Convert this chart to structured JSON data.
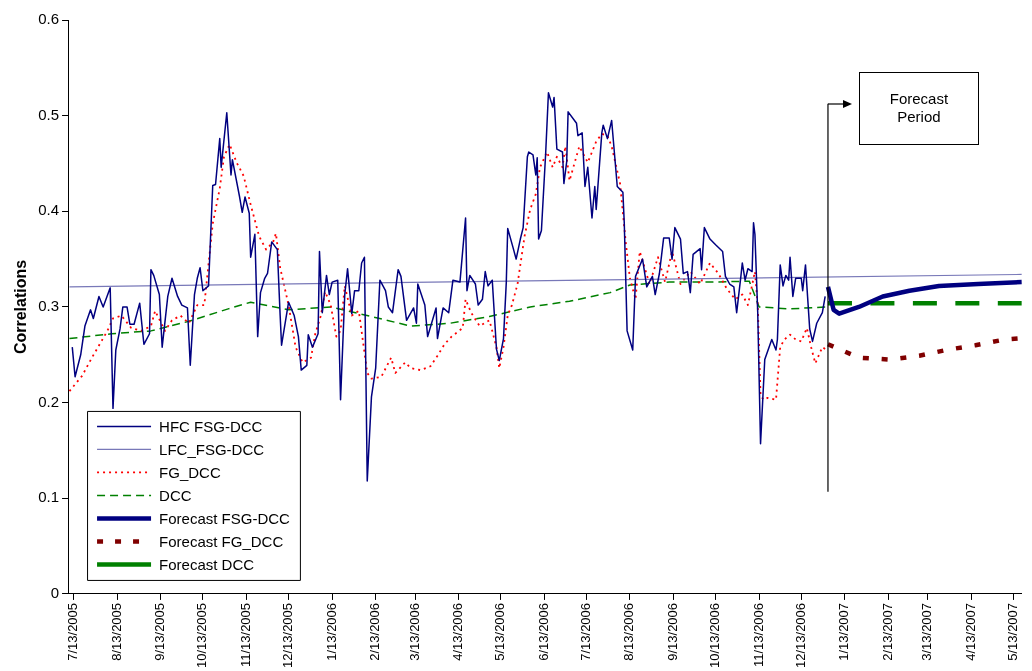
{
  "chart_data": {
    "type": "line",
    "ylabel": "Correlations",
    "xlim": [
      "2005-07-09",
      "2007-05-19"
    ],
    "ylim": [
      0,
      0.6
    ],
    "yticks": [
      0,
      0.1,
      0.2,
      0.3,
      0.4,
      0.5,
      0.6
    ],
    "xticks": [
      {
        "value": "2005-07-13",
        "label": "7/13/2005"
      },
      {
        "value": "2005-08-13",
        "label": "8/13/2005"
      },
      {
        "value": "2005-09-13",
        "label": "9/13/2005"
      },
      {
        "value": "2005-10-13",
        "label": "10/13/2005"
      },
      {
        "value": "2005-11-13",
        "label": "11/13/2005"
      },
      {
        "value": "2005-12-13",
        "label": "12/13/2005"
      },
      {
        "value": "2006-01-13",
        "label": "1/13/2006"
      },
      {
        "value": "2006-02-13",
        "label": "2/13/2006"
      },
      {
        "value": "2006-03-13",
        "label": "3/13/2006"
      },
      {
        "value": "2006-04-13",
        "label": "4/13/2006"
      },
      {
        "value": "2006-05-13",
        "label": "5/13/2006"
      },
      {
        "value": "2006-06-13",
        "label": "6/13/2006"
      },
      {
        "value": "2006-07-13",
        "label": "7/13/2006"
      },
      {
        "value": "2006-08-13",
        "label": "8/13/2006"
      },
      {
        "value": "2006-09-13",
        "label": "9/13/2006"
      },
      {
        "value": "2006-10-13",
        "label": "10/13/2006"
      },
      {
        "value": "2006-11-13",
        "label": "11/13/2006"
      },
      {
        "value": "2006-12-13",
        "label": "12/13/2006"
      },
      {
        "value": "2007-01-13",
        "label": "1/13/2007"
      },
      {
        "value": "2007-02-13",
        "label": "2/13/2007"
      },
      {
        "value": "2007-03-13",
        "label": "3/13/2007"
      },
      {
        "value": "2007-04-13",
        "label": "4/13/2007"
      },
      {
        "value": "2007-05-13",
        "label": "5/13/2007"
      }
    ],
    "legend": "bottom left",
    "marker": "none",
    "ref_lines": [
      {
        "axis": "x",
        "value": "2007-01-01",
        "color": "#000000"
      }
    ],
    "annotations": [
      "Forecast Period"
    ],
    "series": [
      {
        "name": "HFC FSG-DCC",
        "color": "#000080",
        "line_style": "solid",
        "x": [
          "2005-07-12",
          "2005-07-14",
          "2005-07-18",
          "2005-07-21",
          "2005-07-25",
          "2005-07-27",
          "2005-07-31",
          "2005-08-03",
          "2005-08-08",
          "2005-08-10",
          "2005-08-12",
          "2005-08-15",
          "2005-08-17",
          "2005-08-20",
          "2005-08-22",
          "2005-08-25",
          "2005-08-29",
          "2005-09-01",
          "2005-09-05",
          "2005-09-06",
          "2005-09-08",
          "2005-09-12",
          "2005-09-14",
          "2005-09-18",
          "2005-09-21",
          "2005-09-25",
          "2005-09-28",
          "2005-10-02",
          "2005-10-04",
          "2005-10-07",
          "2005-10-09",
          "2005-10-11",
          "2005-10-13",
          "2005-10-17",
          "2005-10-20",
          "2005-10-22",
          "2005-10-25",
          "2005-10-26",
          "2005-10-30",
          "2005-11-02",
          "2005-11-03",
          "2005-11-08",
          "2005-11-10",
          "2005-11-12",
          "2005-11-15",
          "2005-11-16",
          "2005-11-19",
          "2005-11-21",
          "2005-11-23",
          "2005-11-26",
          "2005-11-28",
          "2005-12-01",
          "2005-12-05",
          "2005-12-07",
          "2005-12-08",
          "2005-12-13",
          "2005-12-17",
          "2005-12-20",
          "2005-12-22",
          "2005-12-26",
          "2005-12-27",
          "2005-12-30",
          "2006-01-03",
          "2006-01-04",
          "2006-01-06",
          "2006-01-09",
          "2006-01-11",
          "2006-01-13",
          "2006-01-17",
          "2006-01-19",
          "2006-01-22",
          "2006-01-24",
          "2006-01-27",
          "2006-01-29",
          "2006-02-01",
          "2006-02-03",
          "2006-02-05",
          "2006-02-07",
          "2006-02-10",
          "2006-02-13",
          "2006-02-16",
          "2006-02-20",
          "2006-02-22",
          "2006-02-25",
          "2006-03-01",
          "2006-03-03",
          "2006-03-07",
          "2006-03-12",
          "2006-03-14",
          "2006-03-15",
          "2006-03-20",
          "2006-03-22",
          "2006-03-28",
          "2006-03-29",
          "2006-04-02",
          "2006-04-06",
          "2006-04-09",
          "2006-04-14",
          "2006-04-18",
          "2006-04-19",
          "2006-04-21",
          "2006-04-25",
          "2006-04-27",
          "2006-04-30",
          "2006-05-02",
          "2006-05-04",
          "2006-05-07",
          "2006-05-10",
          "2006-05-12",
          "2006-05-15",
          "2006-05-17",
          "2006-05-18",
          "2006-05-22",
          "2006-05-24",
          "2006-05-27",
          "2006-05-29",
          "2006-06-01",
          "2006-06-02",
          "2006-06-05",
          "2006-06-07",
          "2006-06-08",
          "2006-06-09",
          "2006-06-11",
          "2006-06-14",
          "2006-06-16",
          "2006-06-19",
          "2006-06-20",
          "2006-06-22",
          "2006-06-26",
          "2006-06-27",
          "2006-06-29",
          "2006-06-30",
          "2006-07-06",
          "2006-07-07",
          "2006-07-10",
          "2006-07-12",
          "2006-07-14",
          "2006-07-17",
          "2006-07-19",
          "2006-07-20",
          "2006-07-24",
          "2006-07-25",
          "2006-07-28",
          "2006-07-31",
          "2006-08-04",
          "2006-08-08",
          "2006-08-09",
          "2006-08-11",
          "2006-08-15",
          "2006-08-17",
          "2006-08-20",
          "2006-08-22",
          "2006-08-25",
          "2006-08-29",
          "2006-08-31",
          "2006-09-03",
          "2006-09-06",
          "2006-09-10",
          "2006-09-12",
          "2006-09-14",
          "2006-09-18",
          "2006-09-20",
          "2006-09-23",
          "2006-09-25",
          "2006-09-27",
          "2006-10-02",
          "2006-10-03",
          "2006-10-05",
          "2006-10-09",
          "2006-10-13",
          "2006-10-18",
          "2006-10-20",
          "2006-10-23",
          "2006-10-26",
          "2006-10-28",
          "2006-10-31",
          "2006-11-01",
          "2006-11-03",
          "2006-11-05",
          "2006-11-08",
          "2006-11-09",
          "2006-11-10",
          "2006-11-12",
          "2006-11-14",
          "2006-11-17",
          "2006-11-22",
          "2006-11-25",
          "2006-11-26",
          "2006-11-28",
          "2006-11-30",
          "2006-12-02",
          "2006-12-04",
          "2006-12-05",
          "2006-12-07",
          "2006-12-09",
          "2006-12-13",
          "2006-12-14",
          "2006-12-16",
          "2006-12-19",
          "2006-12-21",
          "2006-12-24",
          "2006-12-28",
          "2006-12-30"
        ],
        "values": [
          0.258,
          0.227,
          0.25,
          0.28,
          0.297,
          0.288,
          0.311,
          0.3,
          0.32,
          0.194,
          0.255,
          0.277,
          0.3,
          0.3,
          0.282,
          0.282,
          0.304,
          0.261,
          0.272,
          0.339,
          0.333,
          0.313,
          0.258,
          0.311,
          0.33,
          0.311,
          0.302,
          0.299,
          0.239,
          0.313,
          0.33,
          0.341,
          0.317,
          0.322,
          0.427,
          0.428,
          0.476,
          0.446,
          0.503,
          0.438,
          0.454,
          0.416,
          0.399,
          0.415,
          0.398,
          0.352,
          0.376,
          0.269,
          0.315,
          0.33,
          0.335,
          0.368,
          0.36,
          0.291,
          0.26,
          0.305,
          0.291,
          0.269,
          0.234,
          0.239,
          0.271,
          0.258,
          0.272,
          0.358,
          0.294,
          0.333,
          0.313,
          0.326,
          0.328,
          0.203,
          0.313,
          0.34,
          0.293,
          0.317,
          0.317,
          0.346,
          0.352,
          0.118,
          0.206,
          0.236,
          0.328,
          0.317,
          0.3,
          0.294,
          0.339,
          0.332,
          0.286,
          0.299,
          0.283,
          0.324,
          0.302,
          0.269,
          0.299,
          0.267,
          0.299,
          0.294,
          0.328,
          0.326,
          0.393,
          0.317,
          0.333,
          0.324,
          0.302,
          0.308,
          0.337,
          0.322,
          0.328,
          0.256,
          0.244,
          0.267,
          0.326,
          0.382,
          0.361,
          0.35,
          0.371,
          0.383,
          0.457,
          0.462,
          0.459,
          0.438,
          0.456,
          0.371,
          0.38,
          0.46,
          0.524,
          0.509,
          0.519,
          0.465,
          0.462,
          0.429,
          0.452,
          0.504,
          0.492,
          0.479,
          0.482,
          0.426,
          0.446,
          0.393,
          0.426,
          0.402,
          0.482,
          0.49,
          0.476,
          0.495,
          0.426,
          0.42,
          0.387,
          0.275,
          0.255,
          0.332,
          0.343,
          0.35,
          0.321,
          0.332,
          0.313,
          0.335,
          0.372,
          0.372,
          0.35,
          0.383,
          0.371,
          0.335,
          0.337,
          0.315,
          0.355,
          0.361,
          0.339,
          0.383,
          0.371,
          0.365,
          0.358,
          0.332,
          0.324,
          0.321,
          0.294,
          0.332,
          0.346,
          0.328,
          0.34,
          0.337,
          0.388,
          0.376,
          0.294,
          0.157,
          0.245,
          0.266,
          0.255,
          0.266,
          0.344,
          0.322,
          0.333,
          0.328,
          0.352,
          0.311,
          0.33,
          0.33,
          0.317,
          0.344,
          0.277,
          0.264,
          0.283,
          0.294,
          0.311
        ]
      },
      {
        "name": "LFC_FSG-DCC",
        "color": "#7878b8",
        "line_style": "solid",
        "x": [
          "2005-07-10",
          "2007-05-19"
        ],
        "values": [
          0.321,
          0.334
        ]
      },
      {
        "name": "FG_DCC",
        "color": "#ff0000",
        "line_style": "dotted",
        "x": [
          "2005-07-10",
          "2005-07-19",
          "2005-07-26",
          "2005-08-06",
          "2005-08-10",
          "2005-08-16",
          "2005-08-23",
          "2005-08-30",
          "2005-09-06",
          "2005-09-09",
          "2005-09-16",
          "2005-09-21",
          "2005-09-27",
          "2005-10-03",
          "2005-10-09",
          "2005-10-14",
          "2005-10-20",
          "2005-10-25",
          "2005-10-28",
          "2005-11-01",
          "2005-11-06",
          "2005-11-11",
          "2005-11-16",
          "2005-11-22",
          "2005-11-27",
          "2005-12-02",
          "2005-12-04",
          "2005-12-07",
          "2005-12-13",
          "2005-12-18",
          "2005-12-23",
          "2005-12-29",
          "2006-01-01",
          "2006-01-05",
          "2006-01-08",
          "2006-01-12",
          "2006-01-16",
          "2006-01-19",
          "2006-01-22",
          "2006-01-27",
          "2006-02-01",
          "2006-02-07",
          "2006-02-10",
          "2006-02-17",
          "2006-02-24",
          "2006-02-27",
          "2006-03-06",
          "2006-03-10",
          "2006-03-17",
          "2006-03-24",
          "2006-03-29",
          "2006-04-03",
          "2006-04-08",
          "2006-04-16",
          "2006-04-18",
          "2006-04-22",
          "2006-04-28",
          "2006-05-05",
          "2006-05-10",
          "2006-05-12",
          "2006-05-15",
          "2006-05-18",
          "2006-05-21",
          "2006-05-25",
          "2006-05-30",
          "2006-06-03",
          "2006-06-07",
          "2006-06-10",
          "2006-06-15",
          "2006-06-19",
          "2006-06-22",
          "2006-06-26",
          "2006-06-28",
          "2006-07-01",
          "2006-07-08",
          "2006-07-14",
          "2006-07-20",
          "2006-07-24",
          "2006-07-28",
          "2006-07-31",
          "2006-08-06",
          "2006-08-10",
          "2006-08-13",
          "2006-08-17",
          "2006-08-20",
          "2006-08-27",
          "2006-09-02",
          "2006-09-07",
          "2006-09-12",
          "2006-09-18",
          "2006-09-25",
          "2006-10-02",
          "2006-10-09",
          "2006-10-15",
          "2006-10-21",
          "2006-10-27",
          "2006-11-01",
          "2006-11-05",
          "2006-11-10",
          "2006-11-12",
          "2006-11-14",
          "2006-11-16",
          "2006-11-19",
          "2006-11-25",
          "2006-11-28",
          "2006-12-01",
          "2006-12-05",
          "2006-12-09",
          "2006-12-13",
          "2006-12-17",
          "2006-12-20",
          "2006-12-23",
          "2006-12-28",
          "2006-12-30"
        ],
        "values": [
          0.212,
          0.228,
          0.247,
          0.275,
          0.288,
          0.291,
          0.278,
          0.275,
          0.28,
          0.296,
          0.275,
          0.286,
          0.291,
          0.283,
          0.302,
          0.302,
          0.387,
          0.424,
          0.457,
          0.47,
          0.451,
          0.437,
          0.407,
          0.374,
          0.36,
          0.368,
          0.377,
          0.341,
          0.302,
          0.258,
          0.242,
          0.247,
          0.272,
          0.291,
          0.316,
          0.302,
          0.269,
          0.275,
          0.322,
          0.291,
          0.296,
          0.231,
          0.225,
          0.227,
          0.247,
          0.231,
          0.242,
          0.236,
          0.234,
          0.238,
          0.249,
          0.261,
          0.269,
          0.278,
          0.308,
          0.294,
          0.28,
          0.286,
          0.258,
          0.236,
          0.258,
          0.291,
          0.302,
          0.324,
          0.374,
          0.402,
          0.418,
          0.446,
          0.462,
          0.446,
          0.457,
          0.446,
          0.468,
          0.432,
          0.468,
          0.451,
          0.473,
          0.481,
          0.479,
          0.468,
          0.429,
          0.368,
          0.33,
          0.308,
          0.358,
          0.324,
          0.352,
          0.326,
          0.358,
          0.324,
          0.337,
          0.324,
          0.346,
          0.335,
          0.319,
          0.308,
          0.313,
          0.302,
          0.337,
          0.302,
          0.208,
          0.203,
          0.205,
          0.203,
          0.258,
          0.266,
          0.271,
          0.266,
          0.264,
          0.278,
          0.258,
          0.241,
          0.258,
          0.256
        ]
      },
      {
        "name": "DCC",
        "color": "#008000",
        "line_style": "dashed",
        "x": [
          "2005-07-10",
          "2005-08-09",
          "2005-09-06",
          "2005-10-03",
          "2005-10-31",
          "2005-11-16",
          "2005-12-13",
          "2006-01-12",
          "2006-02-10",
          "2006-03-10",
          "2006-04-07",
          "2006-05-05",
          "2006-06-03",
          "2006-07-01",
          "2006-07-30",
          "2006-08-13",
          "2006-09-10",
          "2006-10-09",
          "2006-11-06",
          "2006-11-13",
          "2006-12-05",
          "2006-12-30"
        ],
        "values": [
          0.267,
          0.272,
          0.275,
          0.285,
          0.298,
          0.305,
          0.297,
          0.3,
          0.29,
          0.28,
          0.283,
          0.29,
          0.3,
          0.306,
          0.315,
          0.323,
          0.326,
          0.326,
          0.327,
          0.3,
          0.298,
          0.3
        ]
      },
      {
        "name": "Forecast FSG-DCC",
        "color": "#000080",
        "line_style": "solid",
        "x": [
          "2007-01-01",
          "2007-01-05",
          "2007-01-09",
          "2007-01-23",
          "2007-02-09",
          "2007-02-28",
          "2007-03-21",
          "2007-04-18",
          "2007-05-19"
        ],
        "values": [
          0.321,
          0.297,
          0.293,
          0.3,
          0.311,
          0.317,
          0.322,
          0.324,
          0.326
        ]
      },
      {
        "name": "Forecast FG_DCC",
        "color": "#800000",
        "line_style": "dashed",
        "x": [
          "2007-01-01",
          "2007-01-23",
          "2007-02-14",
          "2007-03-07",
          "2007-03-26",
          "2007-04-16",
          "2007-05-07",
          "2007-05-16"
        ],
        "values": [
          0.261,
          0.247,
          0.245,
          0.249,
          0.255,
          0.26,
          0.266,
          0.267
        ]
      },
      {
        "name": "Forecast DCC",
        "color": "#008000",
        "line_style": "dashed",
        "x": [
          "2007-01-01",
          "2007-05-19"
        ],
        "values": [
          0.304,
          0.304
        ]
      }
    ]
  }
}
